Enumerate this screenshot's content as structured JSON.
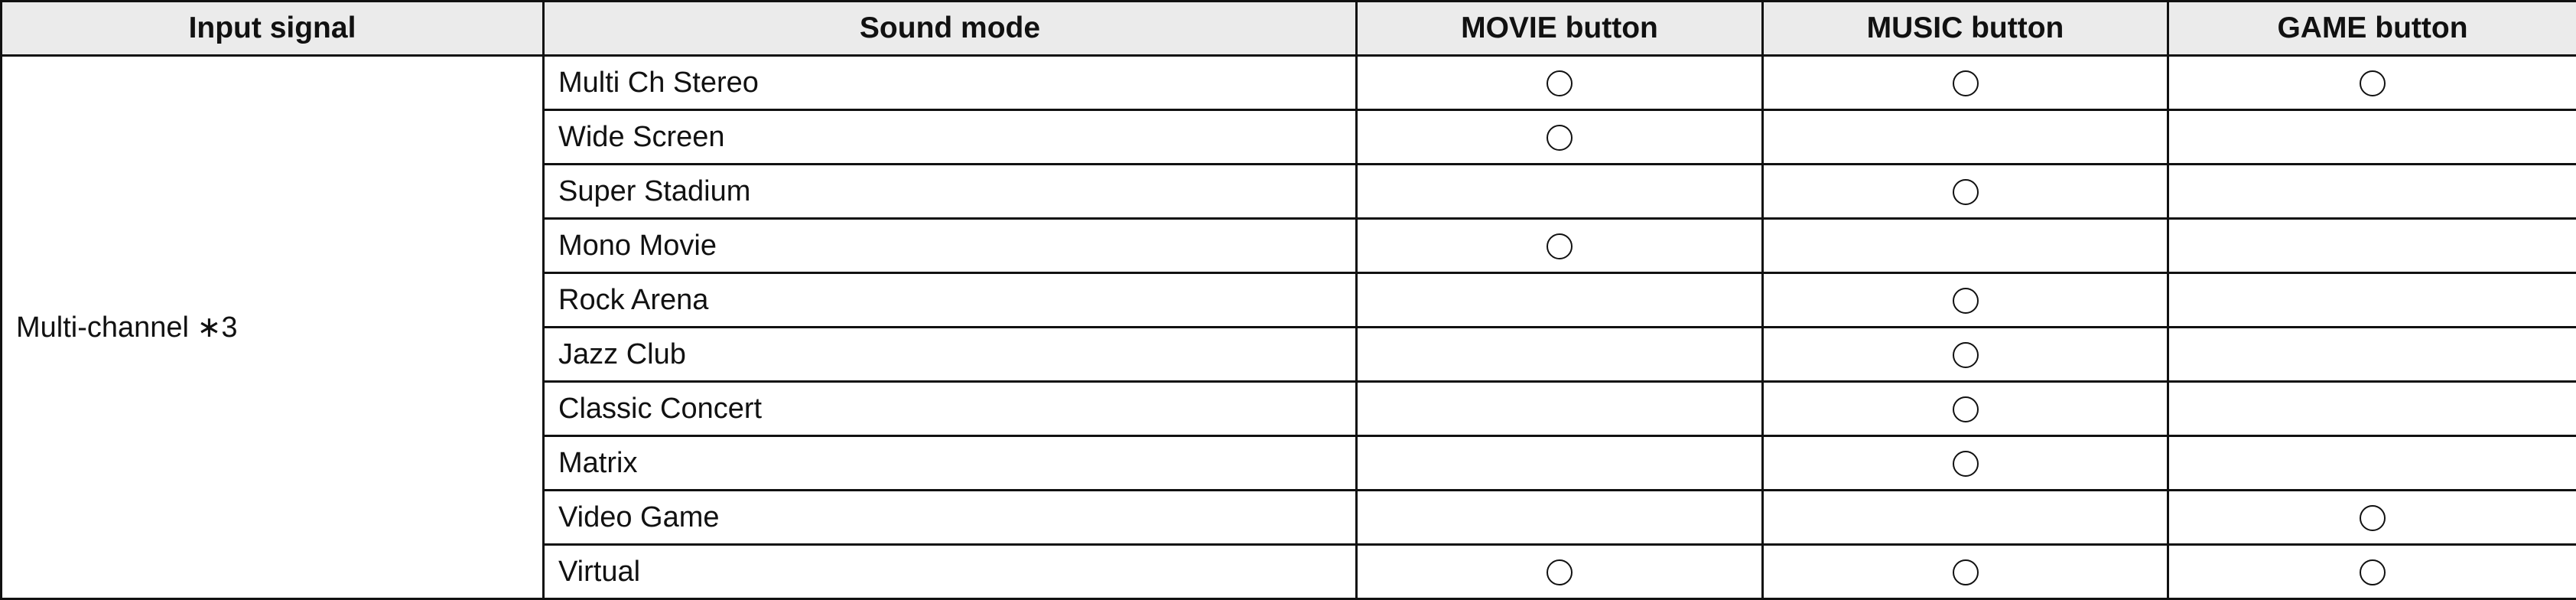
{
  "headers": [
    "Input signal",
    "Sound mode",
    "MOVIE button",
    "MUSIC button",
    "GAME button"
  ],
  "input_signal": "Multi-channel ∗3",
  "mark_icon": "circle-icon",
  "rows": [
    {
      "mode": "Multi Ch Stereo",
      "movie": true,
      "music": true,
      "game": true
    },
    {
      "mode": "Wide Screen",
      "movie": true,
      "music": false,
      "game": false
    },
    {
      "mode": "Super Stadium",
      "movie": false,
      "music": true,
      "game": false
    },
    {
      "mode": "Mono Movie",
      "movie": true,
      "music": false,
      "game": false
    },
    {
      "mode": "Rock Arena",
      "movie": false,
      "music": true,
      "game": false
    },
    {
      "mode": "Jazz Club",
      "movie": false,
      "music": true,
      "game": false
    },
    {
      "mode": "Classic Concert",
      "movie": false,
      "music": true,
      "game": false
    },
    {
      "mode": "Matrix",
      "movie": false,
      "music": true,
      "game": false
    },
    {
      "mode": "Video Game",
      "movie": false,
      "music": false,
      "game": true
    },
    {
      "mode": "Virtual",
      "movie": true,
      "music": true,
      "game": true
    }
  ]
}
